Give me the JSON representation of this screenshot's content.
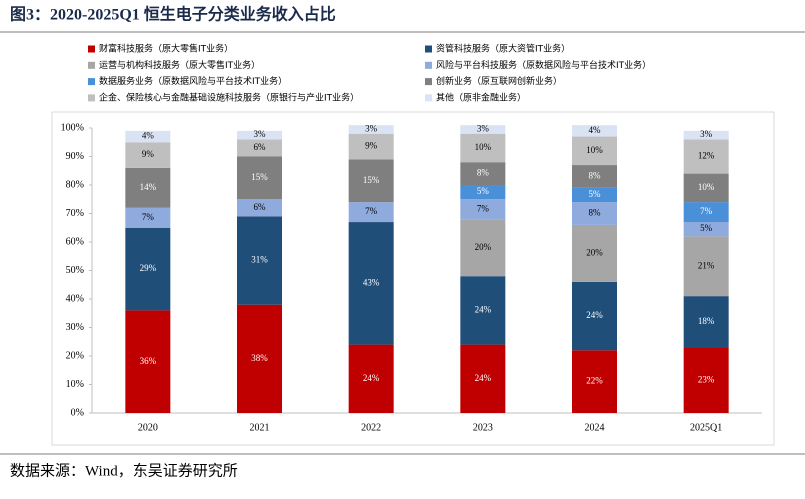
{
  "chart_data": {
    "type": "stacked_bar",
    "title": "图3：2020-2025Q1 恒生电子分类业务收入占比",
    "source": "数据来源：Wind，东吴证券研究所",
    "categories": [
      "2020",
      "2021",
      "2022",
      "2023",
      "2024",
      "2025Q1"
    ],
    "series": [
      {
        "name": "财富科技服务（原大零售IT业务）",
        "color": "#c00000",
        "values": [
          36,
          38,
          24,
          24,
          22,
          23
        ],
        "value_labels": [
          "36%",
          "38%",
          "24%",
          "24%",
          "22%",
          "23%"
        ]
      },
      {
        "name": "资管科技服务（原大资管IT业务）",
        "color": "#1f4e79",
        "values": [
          29,
          31,
          43,
          24,
          24,
          18
        ],
        "value_labels": [
          "29%",
          "31%",
          "43%",
          "24%",
          "24%",
          "18%"
        ]
      },
      {
        "name": "运营与机构科技服务（原大零售IT业务）",
        "color": "#a6a6a6",
        "values": [
          null,
          null,
          null,
          20,
          20,
          21
        ],
        "value_labels": [
          null,
          null,
          null,
          "20%",
          "20%",
          "21%"
        ]
      },
      {
        "name": "风险与平台科技服务（原数据风险与平台技术IT业务）",
        "color": "#8faadc",
        "values": [
          7,
          6,
          7,
          7,
          8,
          5
        ],
        "value_labels": [
          "7%",
          "6%",
          "7%",
          "7%",
          "8%",
          "5%"
        ]
      },
      {
        "name": "数据服务业务（原数据风险与平台技术IT业务）",
        "color": "#4a90d9",
        "values": [
          null,
          null,
          null,
          5,
          5,
          7
        ],
        "value_labels": [
          null,
          null,
          null,
          "5%",
          "5%",
          "7%"
        ]
      },
      {
        "name": "创新业务（原互联网创新业务）",
        "color": "#7f7f7f",
        "values": [
          14,
          15,
          15,
          8,
          8,
          10
        ],
        "value_labels": [
          "14%",
          "15%",
          "15%",
          "8%",
          "8%",
          "10%"
        ]
      },
      {
        "name": "企金、保险核心与金融基础设施科技服务（原银行与产业IT业务）",
        "color": "#bfbfbf",
        "values": [
          9,
          6,
          9,
          10,
          10,
          12
        ],
        "value_labels": [
          "9%",
          "6%",
          "9%",
          "10%",
          "10%",
          "12%"
        ]
      },
      {
        "name": "其他（原非金融业务）",
        "color": "#dae3f3",
        "values": [
          4,
          3,
          3,
          3,
          4,
          3
        ],
        "value_labels": [
          "4%",
          "3%",
          "3%",
          "3%",
          "4%",
          "3%"
        ]
      }
    ],
    "ylim": [
      0,
      100
    ],
    "yticks": [
      {
        "value": 0,
        "label": "0%"
      },
      {
        "value": 10,
        "label": "10%"
      },
      {
        "value": 20,
        "label": "20%"
      },
      {
        "value": 30,
        "label": "30%"
      },
      {
        "value": 40,
        "label": "40%"
      },
      {
        "value": 50,
        "label": "50%"
      },
      {
        "value": 60,
        "label": "60%"
      },
      {
        "value": 70,
        "label": "70%"
      },
      {
        "value": 80,
        "label": "80%"
      },
      {
        "value": 90,
        "label": "90%"
      },
      {
        "value": 100,
        "label": "100%"
      }
    ]
  }
}
